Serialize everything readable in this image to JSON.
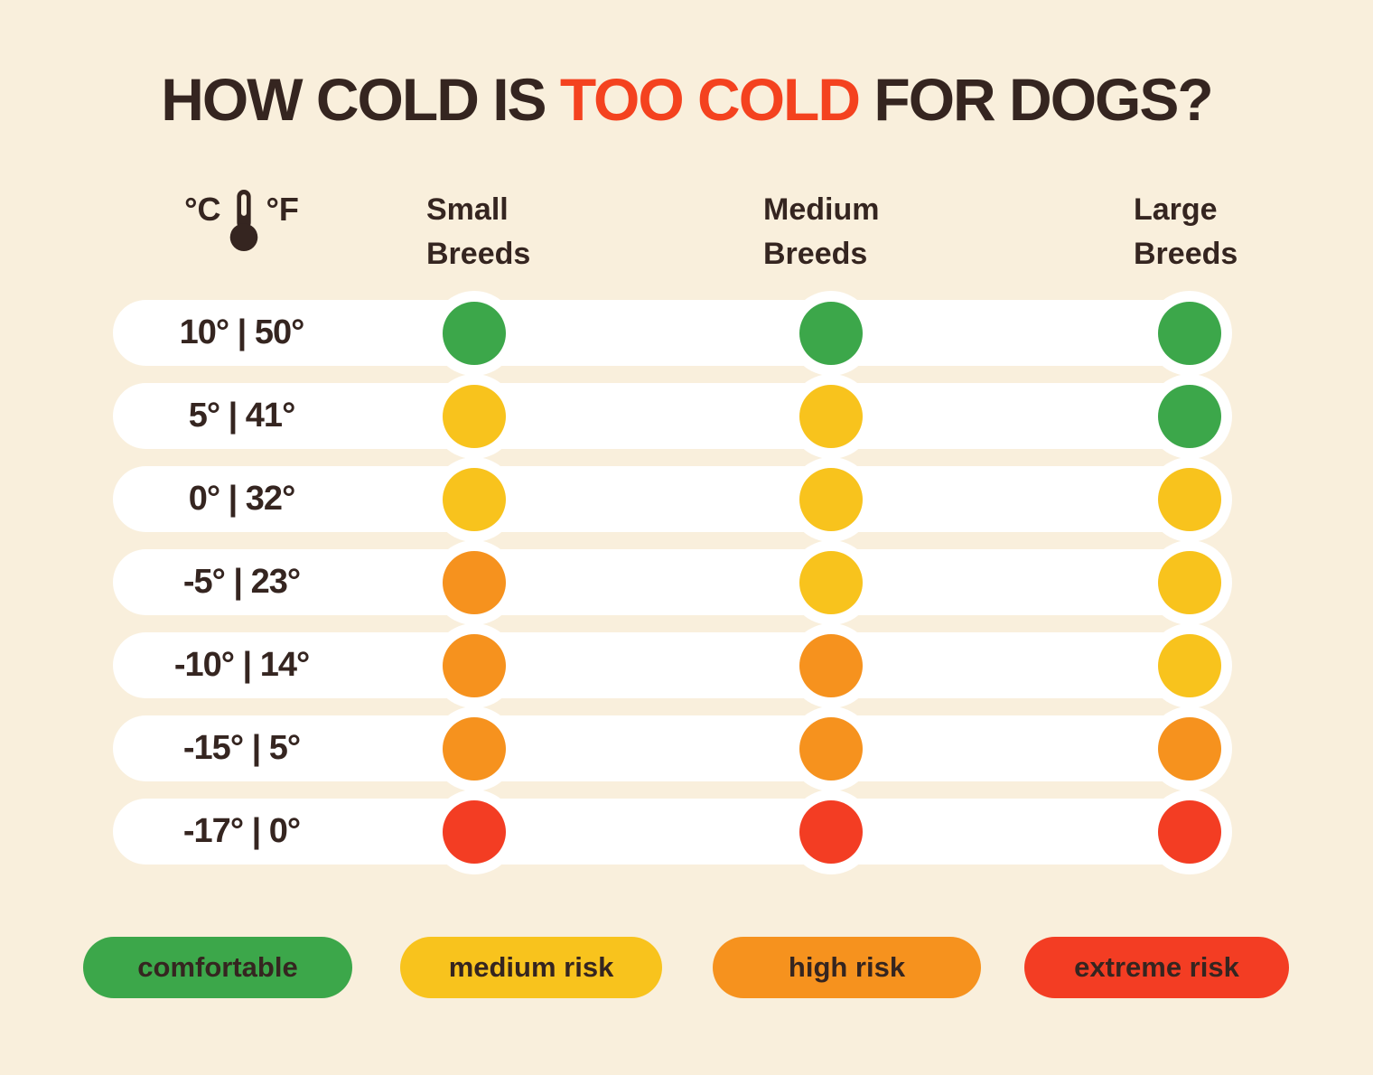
{
  "title": {
    "part1": "HOW COLD IS ",
    "accent": "TOO COLD",
    "part2": " FOR DOGS?"
  },
  "header": {
    "celsius": "°C",
    "fahrenheit": "°F",
    "thermometer_icon": "thermometer-icon",
    "columns": [
      {
        "label": "Small\nBreeds"
      },
      {
        "label": "Medium\nBreeds"
      },
      {
        "label": "Large\nBreeds"
      }
    ]
  },
  "colors": {
    "background": "#F9EFDC",
    "row_background": "#FFFFFF",
    "text_dark": "#352520",
    "title_accent": "#F4421F",
    "comfortable": "#3CA74A",
    "medium": "#F8C31D",
    "high": "#F6921E",
    "extreme": "#F33D23"
  },
  "chart_data": {
    "type": "table",
    "title": "HOW COLD IS TOO COLD FOR DOGS?",
    "columns": [
      "Small Breeds",
      "Medium Breeds",
      "Large Breeds"
    ],
    "rows": [
      {
        "celsius": "10°",
        "fahrenheit": "50°",
        "label": "10° | 50°",
        "risks": [
          "comfortable",
          "comfortable",
          "comfortable"
        ]
      },
      {
        "celsius": "5°",
        "fahrenheit": "41°",
        "label": "5° | 41°",
        "risks": [
          "medium",
          "medium",
          "comfortable"
        ]
      },
      {
        "celsius": "0°",
        "fahrenheit": "32°",
        "label": "0° | 32°",
        "risks": [
          "medium",
          "medium",
          "medium"
        ]
      },
      {
        "celsius": "-5°",
        "fahrenheit": "23°",
        "label": "-5° | 23°",
        "risks": [
          "high",
          "medium",
          "medium"
        ]
      },
      {
        "celsius": "-10°",
        "fahrenheit": "14°",
        "label": "-10° | 14°",
        "risks": [
          "high",
          "high",
          "medium"
        ]
      },
      {
        "celsius": "-15°",
        "fahrenheit": "5°",
        "label": "-15° | 5°",
        "risks": [
          "high",
          "high",
          "high"
        ]
      },
      {
        "celsius": "-17°",
        "fahrenheit": "0°",
        "label": "-17° | 0°",
        "risks": [
          "extreme",
          "extreme",
          "extreme"
        ]
      }
    ],
    "legend": [
      {
        "label": "comfortable",
        "risk": "comfortable"
      },
      {
        "label": "medium risk",
        "risk": "medium"
      },
      {
        "label": "high risk",
        "risk": "high"
      },
      {
        "label": "extreme risk",
        "risk": "extreme"
      }
    ]
  }
}
